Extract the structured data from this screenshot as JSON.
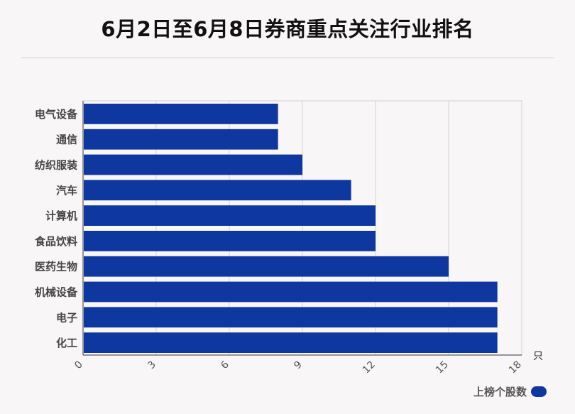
{
  "title": "6月2日至6月8日券商重点关注行业排名",
  "chart_data": {
    "type": "bar",
    "orientation": "horizontal",
    "categories": [
      "电气设备",
      "通信",
      "纺织服装",
      "汽车",
      "计算机",
      "食品饮料",
      "医药生物",
      "机械设备",
      "电子",
      "化工"
    ],
    "series": [
      {
        "name": "上榜个股数",
        "values": [
          8,
          8,
          9,
          11,
          12,
          12,
          15,
          17,
          17,
          17
        ]
      }
    ],
    "xlim": [
      0,
      18
    ],
    "xticks": [
      0,
      3,
      6,
      9,
      12,
      15,
      18
    ],
    "xunit": "只",
    "grid": true,
    "legend_position": "bottom-right",
    "bar_color": "#0e37a0"
  }
}
